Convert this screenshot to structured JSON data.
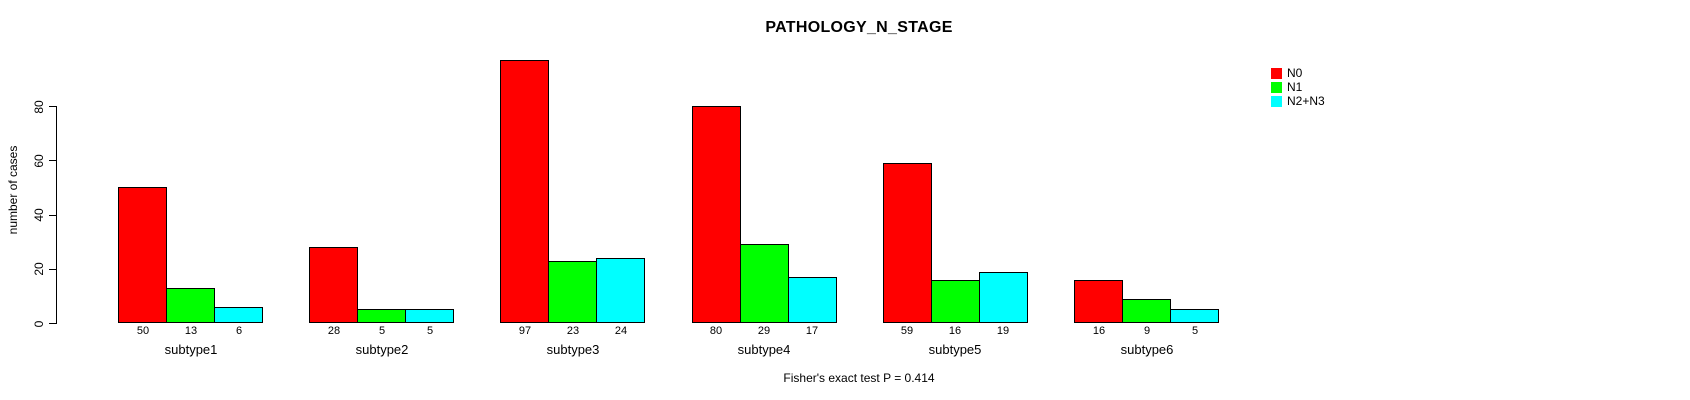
{
  "chart_data": {
    "type": "bar",
    "title": "PATHOLOGY_N_STAGE",
    "xlabel": "",
    "ylabel": "number of cases",
    "categories": [
      "subtype1",
      "subtype2",
      "subtype3",
      "subtype4",
      "subtype5",
      "subtype6"
    ],
    "series": [
      {
        "name": "N0",
        "color": "#ff0000",
        "values": [
          50,
          28,
          97,
          80,
          59,
          16
        ]
      },
      {
        "name": "N1",
        "color": "#00ff00",
        "values": [
          13,
          5,
          23,
          29,
          16,
          9
        ]
      },
      {
        "name": "N2+N3",
        "color": "#00ffff",
        "values": [
          6,
          5,
          24,
          17,
          19,
          5
        ]
      }
    ],
    "yticks": [
      0,
      20,
      40,
      60,
      80
    ],
    "ylim": [
      0,
      97
    ],
    "bar_value_labels": true,
    "grid": false,
    "legend_position": "right",
    "annotation": "Fisher's exact test P = 0.414"
  }
}
